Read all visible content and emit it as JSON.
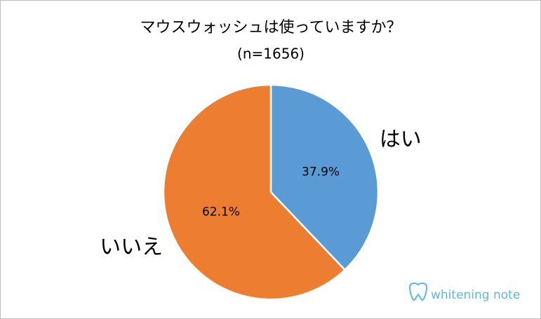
{
  "chart_data": {
    "type": "pie",
    "title": "マウスウォッシュは使っていますか？",
    "subtitle": "(n=1656)",
    "categories": [
      "はい",
      "いいえ"
    ],
    "values": [
      37.9,
      62.1
    ],
    "value_labels": [
      "37.9%",
      "62.1%"
    ],
    "colors": [
      "#5b9bd5",
      "#ed7d31"
    ],
    "watermark": "whitening note"
  }
}
